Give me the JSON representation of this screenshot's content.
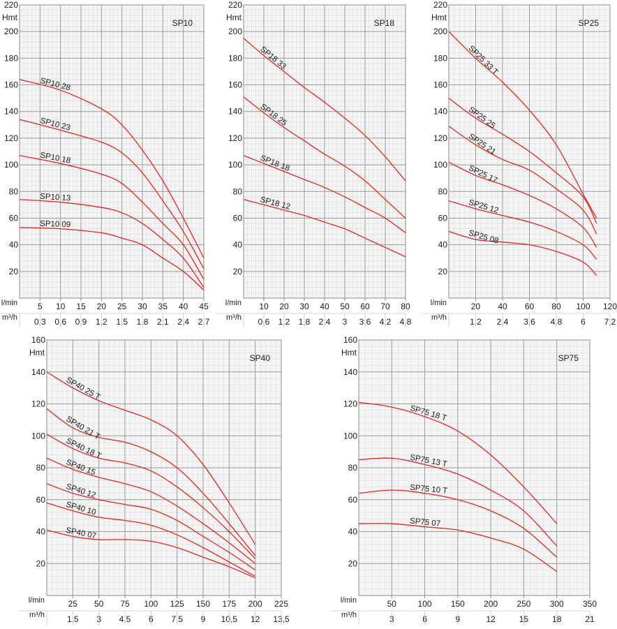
{
  "chart_data": [
    {
      "type": "line",
      "model": "SP10",
      "ylabel": "Hmt",
      "ylim": [
        0,
        220
      ],
      "yticks": [
        20,
        40,
        60,
        80,
        100,
        120,
        140,
        160,
        180,
        200,
        220
      ],
      "xlim": [
        0,
        45
      ],
      "xlabel_primary": "l/min",
      "xlabel_secondary": "m³/h",
      "xticks": [
        5,
        10,
        15,
        20,
        25,
        30,
        35,
        40,
        45
      ],
      "xticks_secondary": [
        "0,3",
        "0,6",
        "0,9",
        "1,2",
        "1,5",
        "1,8",
        "2,1",
        "2,4",
        "2,7"
      ],
      "series": [
        {
          "name": "SP10 28",
          "x": [
            0,
            10,
            20,
            25,
            30,
            35,
            40,
            45
          ],
          "y": [
            164,
            156,
            142,
            130,
            111,
            88,
            60,
            30
          ]
        },
        {
          "name": "SP10 23",
          "x": [
            0,
            10,
            20,
            25,
            30,
            35,
            40,
            45
          ],
          "y": [
            134,
            126,
            117,
            109,
            94,
            73,
            50,
            22
          ]
        },
        {
          "name": "SP10 18",
          "x": [
            0,
            10,
            20,
            25,
            30,
            35,
            40,
            45
          ],
          "y": [
            107,
            101,
            93,
            86,
            72,
            56,
            40,
            14
          ]
        },
        {
          "name": "SP10 13",
          "x": [
            0,
            10,
            20,
            25,
            30,
            35,
            40,
            45
          ],
          "y": [
            74,
            72,
            68,
            64,
            56,
            44,
            30,
            8
          ]
        },
        {
          "name": "SP10 09",
          "x": [
            0,
            10,
            20,
            25,
            30,
            35,
            40,
            45
          ],
          "y": [
            53,
            52,
            49,
            45,
            40,
            30,
            20,
            6
          ]
        }
      ]
    },
    {
      "type": "line",
      "model": "SP18",
      "ylabel": "Hmt",
      "ylim": [
        0,
        220
      ],
      "yticks": [
        20,
        40,
        60,
        80,
        100,
        120,
        140,
        160,
        180,
        200,
        220
      ],
      "xlim": [
        0,
        80
      ],
      "xlabel_primary": "l/min",
      "xlabel_secondary": "m³/h",
      "xticks": [
        10,
        20,
        30,
        40,
        50,
        60,
        70,
        80
      ],
      "xticks_secondary": [
        "0,6",
        "1,2",
        "1,8",
        "2,4",
        "3",
        "3,6",
        "4,2",
        "4,8"
      ],
      "series": [
        {
          "name": "SP18 33",
          "x": [
            0,
            10,
            20,
            30,
            40,
            50,
            60,
            70,
            80
          ],
          "y": [
            195,
            182,
            170,
            158,
            147,
            135,
            122,
            106,
            88
          ]
        },
        {
          "name": "SP18 25",
          "x": [
            0,
            10,
            20,
            30,
            40,
            50,
            60,
            70,
            80
          ],
          "y": [
            151,
            139,
            128,
            118,
            108,
            99,
            88,
            74,
            60
          ]
        },
        {
          "name": "SP18 18",
          "x": [
            0,
            10,
            20,
            30,
            40,
            50,
            60,
            70,
            80
          ],
          "y": [
            107,
            101,
            95,
            89,
            83,
            76,
            68,
            60,
            49
          ]
        },
        {
          "name": "SP18 12",
          "x": [
            0,
            10,
            20,
            30,
            40,
            50,
            60,
            70,
            80
          ],
          "y": [
            74,
            70,
            66,
            62,
            57,
            52,
            45,
            38,
            31
          ]
        }
      ]
    },
    {
      "type": "line",
      "model": "SP25",
      "ylabel": "Hmt",
      "ylim": [
        0,
        220
      ],
      "yticks": [
        20,
        40,
        60,
        80,
        100,
        120,
        140,
        160,
        180,
        200,
        220
      ],
      "xlim": [
        0,
        120
      ],
      "xlabel_primary": "l/min",
      "xlabel_secondary": "m³/h",
      "xticks": [
        20,
        40,
        60,
        80,
        100,
        120
      ],
      "xticks_secondary": [
        "1,2",
        "2,4",
        "3,6",
        "4,8",
        "6",
        "7,2"
      ],
      "series": [
        {
          "name": "SP25 33 T",
          "x": [
            0,
            20,
            40,
            60,
            80,
            100,
            110
          ],
          "y": [
            200,
            180,
            162,
            141,
            115,
            78,
            60
          ]
        },
        {
          "name": "SP25 25",
          "x": [
            0,
            20,
            40,
            60,
            80,
            100,
            110
          ],
          "y": [
            150,
            135,
            123,
            110,
            94,
            76,
            56
          ]
        },
        {
          "name": "SP25 21",
          "x": [
            0,
            20,
            40,
            60,
            80,
            100,
            110
          ],
          "y": [
            129,
            115,
            104,
            96,
            82,
            66,
            48
          ]
        },
        {
          "name": "SP25 17",
          "x": [
            0,
            20,
            40,
            60,
            80,
            100,
            110
          ],
          "y": [
            102,
            92,
            85,
            77,
            67,
            53,
            38
          ]
        },
        {
          "name": "SP25 12",
          "x": [
            0,
            20,
            40,
            60,
            80,
            100,
            110
          ],
          "y": [
            73,
            67,
            62,
            57,
            50,
            40,
            29
          ]
        },
        {
          "name": "SP25 08",
          "x": [
            0,
            20,
            40,
            60,
            80,
            100,
            110
          ],
          "y": [
            50,
            44,
            42,
            40,
            35,
            27,
            17
          ]
        }
      ]
    },
    {
      "type": "line",
      "model": "SP40",
      "ylabel": "Hmt",
      "ylim": [
        0,
        160
      ],
      "yticks": [
        20,
        40,
        60,
        80,
        100,
        120,
        140,
        160
      ],
      "xlim": [
        0,
        225
      ],
      "xlabel_primary": "l/min",
      "xlabel_secondary": "m³/h",
      "xticks": [
        25,
        50,
        75,
        100,
        125,
        150,
        175,
        200,
        225
      ],
      "xticks_secondary": [
        "1,5",
        "3",
        "4,5",
        "6",
        "7,5",
        "9",
        "10,5",
        "12",
        "13,5"
      ],
      "series": [
        {
          "name": "SP40 25 T",
          "x": [
            0,
            25,
            50,
            75,
            100,
            125,
            150,
            175,
            200
          ],
          "y": [
            140,
            130,
            122,
            116,
            110,
            100,
            82,
            58,
            32
          ]
        },
        {
          "name": "SP40 21 T",
          "x": [
            0,
            25,
            50,
            75,
            100,
            125,
            150,
            175,
            200
          ],
          "y": [
            117,
            105,
            99,
            96,
            90,
            80,
            64,
            45,
            25
          ]
        },
        {
          "name": "SP40 18 T",
          "x": [
            0,
            25,
            50,
            75,
            100,
            125,
            150,
            175,
            200
          ],
          "y": [
            101,
            92,
            86,
            83,
            78,
            68,
            55,
            40,
            23
          ]
        },
        {
          "name": "SP40 15",
          "x": [
            0,
            25,
            50,
            75,
            100,
            125,
            150,
            175,
            200
          ],
          "y": [
            86,
            79,
            74,
            70,
            65,
            56,
            45,
            33,
            20
          ]
        },
        {
          "name": "SP40 12",
          "x": [
            0,
            25,
            50,
            75,
            100,
            125,
            150,
            175,
            200
          ],
          "y": [
            70,
            64,
            60,
            57,
            54,
            47,
            37,
            27,
            16
          ]
        },
        {
          "name": "SP40 10",
          "x": [
            0,
            25,
            50,
            75,
            100,
            125,
            150,
            175,
            200
          ],
          "y": [
            58,
            53,
            49,
            47,
            44,
            38,
            30,
            21,
            12
          ]
        },
        {
          "name": "SP40 07",
          "x": [
            0,
            25,
            50,
            75,
            100,
            125,
            150,
            175,
            200
          ],
          "y": [
            41,
            37,
            35,
            35,
            34,
            30,
            24,
            18,
            11
          ]
        }
      ]
    },
    {
      "type": "line",
      "model": "SP75",
      "ylabel": "Hmt",
      "ylim": [
        0,
        160
      ],
      "yticks": [
        20,
        40,
        60,
        80,
        100,
        120,
        140,
        160
      ],
      "xlim": [
        0,
        350
      ],
      "xlabel_primary": "l/min",
      "xlabel_secondary": "m³/h",
      "xticks": [
        50,
        100,
        150,
        200,
        250,
        300,
        350
      ],
      "xticks_secondary": [
        "3",
        "6",
        "9",
        "12",
        "15",
        "18",
        "21"
      ],
      "series": [
        {
          "name": "SP75 18 T",
          "x": [
            0,
            50,
            100,
            150,
            200,
            250,
            300
          ],
          "y": [
            121,
            118,
            112,
            103,
            88,
            68,
            45
          ]
        },
        {
          "name": "SP75 13 T",
          "x": [
            0,
            50,
            100,
            150,
            200,
            250,
            300
          ],
          "y": [
            85,
            86,
            82,
            76,
            66,
            53,
            31
          ]
        },
        {
          "name": "SP75 10 T",
          "x": [
            0,
            50,
            100,
            150,
            200,
            250,
            300
          ],
          "y": [
            64,
            66,
            64,
            60,
            53,
            42,
            24
          ]
        },
        {
          "name": "SP75 07",
          "x": [
            0,
            50,
            100,
            150,
            200,
            250,
            300
          ],
          "y": [
            45,
            45,
            43,
            41,
            36,
            29,
            15
          ]
        }
      ]
    }
  ],
  "colors": {
    "curve": "#e0261e",
    "major_grid": "#9a9a9a",
    "minor_grid": "#dedede",
    "plot_bg": "#f4f4f4",
    "border": "#8c8c8c"
  }
}
